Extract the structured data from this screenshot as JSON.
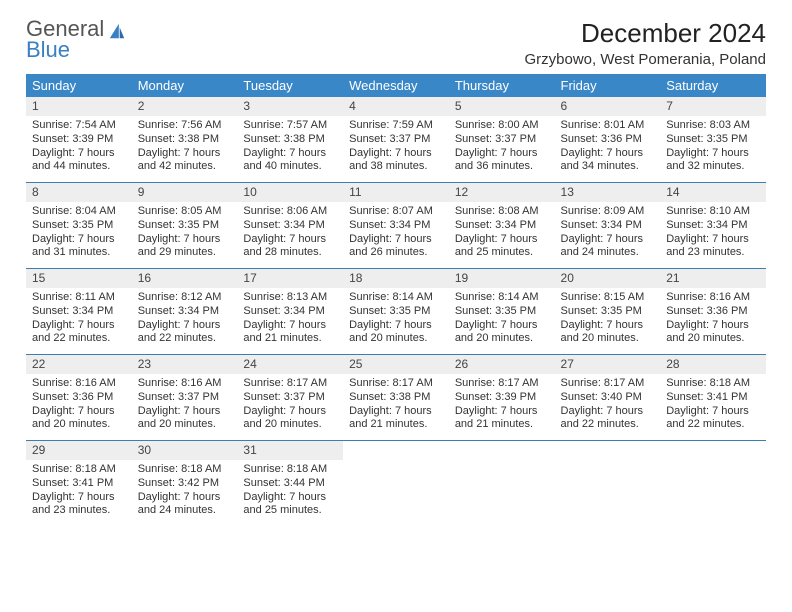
{
  "logo": {
    "line1": "General",
    "line2": "Blue"
  },
  "title": "December 2024",
  "location": "Grzybowo, West Pomerania, Poland",
  "colors": {
    "header_bg": "#3a87c7",
    "header_text": "#ffffff",
    "rule": "#3a7fb0",
    "daynum_bg": "#eeeeee",
    "body_text": "#333333",
    "logo_gray": "#555555",
    "logo_blue": "#3a7fc4"
  },
  "typography": {
    "title_fontsize": 26,
    "location_fontsize": 15,
    "dow_fontsize": 13,
    "cell_fontsize": 11
  },
  "dow": [
    "Sunday",
    "Monday",
    "Tuesday",
    "Wednesday",
    "Thursday",
    "Friday",
    "Saturday"
  ],
  "days": [
    {
      "n": "1",
      "sr": "7:54 AM",
      "ss": "3:39 PM",
      "dl": "7 hours and 44 minutes."
    },
    {
      "n": "2",
      "sr": "7:56 AM",
      "ss": "3:38 PM",
      "dl": "7 hours and 42 minutes."
    },
    {
      "n": "3",
      "sr": "7:57 AM",
      "ss": "3:38 PM",
      "dl": "7 hours and 40 minutes."
    },
    {
      "n": "4",
      "sr": "7:59 AM",
      "ss": "3:37 PM",
      "dl": "7 hours and 38 minutes."
    },
    {
      "n": "5",
      "sr": "8:00 AM",
      "ss": "3:37 PM",
      "dl": "7 hours and 36 minutes."
    },
    {
      "n": "6",
      "sr": "8:01 AM",
      "ss": "3:36 PM",
      "dl": "7 hours and 34 minutes."
    },
    {
      "n": "7",
      "sr": "8:03 AM",
      "ss": "3:35 PM",
      "dl": "7 hours and 32 minutes."
    },
    {
      "n": "8",
      "sr": "8:04 AM",
      "ss": "3:35 PM",
      "dl": "7 hours and 31 minutes."
    },
    {
      "n": "9",
      "sr": "8:05 AM",
      "ss": "3:35 PM",
      "dl": "7 hours and 29 minutes."
    },
    {
      "n": "10",
      "sr": "8:06 AM",
      "ss": "3:34 PM",
      "dl": "7 hours and 28 minutes."
    },
    {
      "n": "11",
      "sr": "8:07 AM",
      "ss": "3:34 PM",
      "dl": "7 hours and 26 minutes."
    },
    {
      "n": "12",
      "sr": "8:08 AM",
      "ss": "3:34 PM",
      "dl": "7 hours and 25 minutes."
    },
    {
      "n": "13",
      "sr": "8:09 AM",
      "ss": "3:34 PM",
      "dl": "7 hours and 24 minutes."
    },
    {
      "n": "14",
      "sr": "8:10 AM",
      "ss": "3:34 PM",
      "dl": "7 hours and 23 minutes."
    },
    {
      "n": "15",
      "sr": "8:11 AM",
      "ss": "3:34 PM",
      "dl": "7 hours and 22 minutes."
    },
    {
      "n": "16",
      "sr": "8:12 AM",
      "ss": "3:34 PM",
      "dl": "7 hours and 22 minutes."
    },
    {
      "n": "17",
      "sr": "8:13 AM",
      "ss": "3:34 PM",
      "dl": "7 hours and 21 minutes."
    },
    {
      "n": "18",
      "sr": "8:14 AM",
      "ss": "3:35 PM",
      "dl": "7 hours and 20 minutes."
    },
    {
      "n": "19",
      "sr": "8:14 AM",
      "ss": "3:35 PM",
      "dl": "7 hours and 20 minutes."
    },
    {
      "n": "20",
      "sr": "8:15 AM",
      "ss": "3:35 PM",
      "dl": "7 hours and 20 minutes."
    },
    {
      "n": "21",
      "sr": "8:16 AM",
      "ss": "3:36 PM",
      "dl": "7 hours and 20 minutes."
    },
    {
      "n": "22",
      "sr": "8:16 AM",
      "ss": "3:36 PM",
      "dl": "7 hours and 20 minutes."
    },
    {
      "n": "23",
      "sr": "8:16 AM",
      "ss": "3:37 PM",
      "dl": "7 hours and 20 minutes."
    },
    {
      "n": "24",
      "sr": "8:17 AM",
      "ss": "3:37 PM",
      "dl": "7 hours and 20 minutes."
    },
    {
      "n": "25",
      "sr": "8:17 AM",
      "ss": "3:38 PM",
      "dl": "7 hours and 21 minutes."
    },
    {
      "n": "26",
      "sr": "8:17 AM",
      "ss": "3:39 PM",
      "dl": "7 hours and 21 minutes."
    },
    {
      "n": "27",
      "sr": "8:17 AM",
      "ss": "3:40 PM",
      "dl": "7 hours and 22 minutes."
    },
    {
      "n": "28",
      "sr": "8:18 AM",
      "ss": "3:41 PM",
      "dl": "7 hours and 22 minutes."
    },
    {
      "n": "29",
      "sr": "8:18 AM",
      "ss": "3:41 PM",
      "dl": "7 hours and 23 minutes."
    },
    {
      "n": "30",
      "sr": "8:18 AM",
      "ss": "3:42 PM",
      "dl": "7 hours and 24 minutes."
    },
    {
      "n": "31",
      "sr": "8:18 AM",
      "ss": "3:44 PM",
      "dl": "7 hours and 25 minutes."
    }
  ],
  "labels": {
    "sunrise_prefix": "Sunrise: ",
    "sunset_prefix": "Sunset: ",
    "daylight_prefix": "Daylight: "
  },
  "layout": {
    "start_dow": 0,
    "cols": 7,
    "rows": 5
  }
}
